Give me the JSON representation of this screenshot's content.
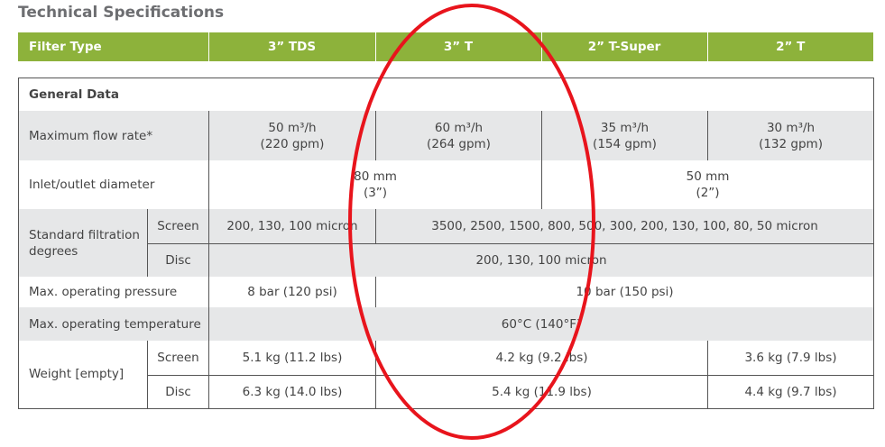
{
  "title": "Technical Specifications",
  "table": {
    "header": [
      "Filter Type",
      "3” TDS",
      "3” T",
      "2” T-Super",
      "2” T"
    ],
    "section": "General Data",
    "rows": [
      {
        "label": "Maximum flow rate*",
        "cells": [
          [
            "50 m³/h",
            "(220 gpm)"
          ],
          [
            "60 m³/h",
            "(264 gpm)"
          ],
          [
            "35 m³/h",
            "(154 gpm)"
          ],
          [
            "30 m³/h",
            "(132 gpm)"
          ]
        ]
      },
      {
        "label": "Inlet/outlet diameter",
        "cells": [
          [
            "80 mm",
            "(3”)"
          ],
          [
            "50 mm",
            "(2”)"
          ]
        ]
      },
      {
        "label": "Standard filtration degrees",
        "sub": [
          {
            "label": "Screen",
            "cells": [
              "200, 130, 100 micron",
              "3500, 2500, 1500, 800, 500, 300, 200, 130, 100, 80, 50 micron"
            ]
          },
          {
            "label": "Disc",
            "cells": [
              "200, 130, 100 micron"
            ]
          }
        ]
      },
      {
        "label": "Max. operating pressure",
        "cells": [
          "8 bar (120 psi)",
          "10 bar (150 psi)"
        ]
      },
      {
        "label": "Max. operating temperature",
        "cells": [
          "60°C (140°F)"
        ]
      },
      {
        "label": "Weight [empty]",
        "sub": [
          {
            "label": "Screen",
            "cells": [
              "5.1 kg (11.2 lbs)",
              "4.2 kg (9.2 lbs)",
              "3.6 kg (7.9 lbs)"
            ]
          },
          {
            "label": "Disc",
            "cells": [
              "6.3 kg (14.0 lbs)",
              "5.4 kg (11.9 lbs)",
              "4.4 kg (9.7 lbs)"
            ]
          }
        ]
      }
    ]
  }
}
